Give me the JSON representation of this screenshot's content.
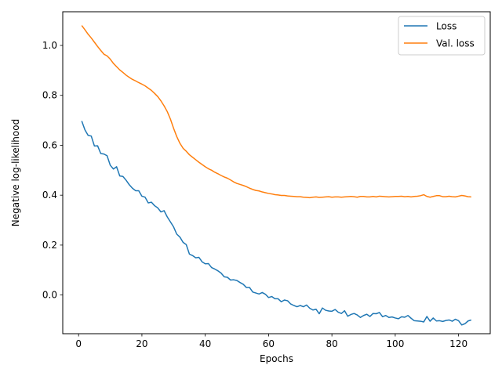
{
  "chart_data": {
    "type": "line",
    "title": "",
    "xlabel": "Epochs",
    "ylabel": "Negative log-likelihood",
    "xlim": [
      -5,
      130
    ],
    "ylim": [
      -0.155,
      1.135
    ],
    "xticks": [
      0,
      20,
      40,
      60,
      80,
      100,
      120
    ],
    "yticks": [
      0.0,
      0.2,
      0.4,
      0.6,
      0.8,
      1.0
    ],
    "ytick_labels": [
      "0.0",
      "0.2",
      "0.4",
      "0.6",
      "0.8",
      "1.0"
    ],
    "grid": false,
    "legend_position": "top-right",
    "x": [
      1,
      2,
      3,
      4,
      5,
      6,
      7,
      8,
      9,
      10,
      11,
      12,
      13,
      14,
      15,
      16,
      17,
      18,
      19,
      20,
      21,
      22,
      23,
      24,
      25,
      26,
      27,
      28,
      29,
      30,
      31,
      32,
      33,
      34,
      35,
      36,
      37,
      38,
      39,
      40,
      41,
      42,
      43,
      44,
      45,
      46,
      47,
      48,
      49,
      50,
      51,
      52,
      53,
      54,
      55,
      56,
      57,
      58,
      59,
      60,
      61,
      62,
      63,
      64,
      65,
      66,
      67,
      68,
      69,
      70,
      71,
      72,
      73,
      74,
      75,
      76,
      77,
      78,
      79,
      80,
      81,
      82,
      83,
      84,
      85,
      86,
      87,
      88,
      89,
      90,
      91,
      92,
      93,
      94,
      95,
      96,
      97,
      98,
      99,
      100,
      101,
      102,
      103,
      104,
      105,
      106,
      107,
      108,
      109,
      110,
      111,
      112,
      113,
      114,
      115,
      116,
      117,
      118,
      119,
      120,
      121,
      122,
      123,
      124
    ],
    "series": [
      {
        "name": "Loss",
        "color": "#1f77b4",
        "values": [
          0.697,
          0.662,
          0.64,
          0.637,
          0.597,
          0.598,
          0.567,
          0.565,
          0.558,
          0.52,
          0.505,
          0.514,
          0.477,
          0.475,
          0.46,
          0.442,
          0.428,
          0.418,
          0.418,
          0.396,
          0.392,
          0.369,
          0.372,
          0.358,
          0.349,
          0.333,
          0.338,
          0.313,
          0.293,
          0.273,
          0.244,
          0.232,
          0.211,
          0.202,
          0.164,
          0.158,
          0.149,
          0.151,
          0.133,
          0.125,
          0.126,
          0.11,
          0.104,
          0.097,
          0.088,
          0.073,
          0.071,
          0.06,
          0.061,
          0.058,
          0.05,
          0.043,
          0.03,
          0.03,
          0.012,
          0.008,
          0.004,
          0.01,
          0.003,
          -0.01,
          -0.006,
          -0.015,
          -0.015,
          -0.027,
          -0.02,
          -0.023,
          -0.036,
          -0.042,
          -0.047,
          -0.042,
          -0.047,
          -0.04,
          -0.053,
          -0.06,
          -0.057,
          -0.075,
          -0.052,
          -0.061,
          -0.064,
          -0.065,
          -0.058,
          -0.069,
          -0.074,
          -0.063,
          -0.085,
          -0.078,
          -0.074,
          -0.08,
          -0.09,
          -0.082,
          -0.077,
          -0.086,
          -0.074,
          -0.075,
          -0.07,
          -0.087,
          -0.082,
          -0.09,
          -0.088,
          -0.092,
          -0.095,
          -0.087,
          -0.089,
          -0.082,
          -0.093,
          -0.103,
          -0.104,
          -0.105,
          -0.108,
          -0.086,
          -0.105,
          -0.092,
          -0.104,
          -0.103,
          -0.106,
          -0.102,
          -0.1,
          -0.105,
          -0.097,
          -0.103,
          -0.12,
          -0.115,
          -0.104,
          -0.1
        ]
      },
      {
        "name": "Val. loss",
        "color": "#ff7f0e",
        "values": [
          1.08,
          1.063,
          1.045,
          1.03,
          1.013,
          0.996,
          0.98,
          0.965,
          0.958,
          0.945,
          0.928,
          0.915,
          0.902,
          0.892,
          0.881,
          0.872,
          0.864,
          0.858,
          0.851,
          0.845,
          0.838,
          0.829,
          0.82,
          0.808,
          0.795,
          0.778,
          0.758,
          0.735,
          0.705,
          0.668,
          0.635,
          0.608,
          0.588,
          0.576,
          0.562,
          0.552,
          0.542,
          0.532,
          0.523,
          0.514,
          0.506,
          0.5,
          0.492,
          0.486,
          0.479,
          0.473,
          0.468,
          0.461,
          0.453,
          0.447,
          0.443,
          0.439,
          0.434,
          0.428,
          0.423,
          0.419,
          0.417,
          0.413,
          0.41,
          0.407,
          0.405,
          0.402,
          0.401,
          0.399,
          0.399,
          0.397,
          0.396,
          0.395,
          0.394,
          0.394,
          0.392,
          0.391,
          0.39,
          0.392,
          0.393,
          0.391,
          0.392,
          0.393,
          0.394,
          0.392,
          0.393,
          0.393,
          0.392,
          0.393,
          0.394,
          0.395,
          0.394,
          0.392,
          0.395,
          0.395,
          0.393,
          0.393,
          0.395,
          0.393,
          0.396,
          0.395,
          0.394,
          0.393,
          0.394,
          0.395,
          0.395,
          0.396,
          0.394,
          0.395,
          0.393,
          0.395,
          0.396,
          0.398,
          0.402,
          0.395,
          0.392,
          0.395,
          0.398,
          0.398,
          0.394,
          0.394,
          0.396,
          0.394,
          0.393,
          0.396,
          0.399,
          0.397,
          0.394,
          0.393
        ]
      }
    ]
  }
}
